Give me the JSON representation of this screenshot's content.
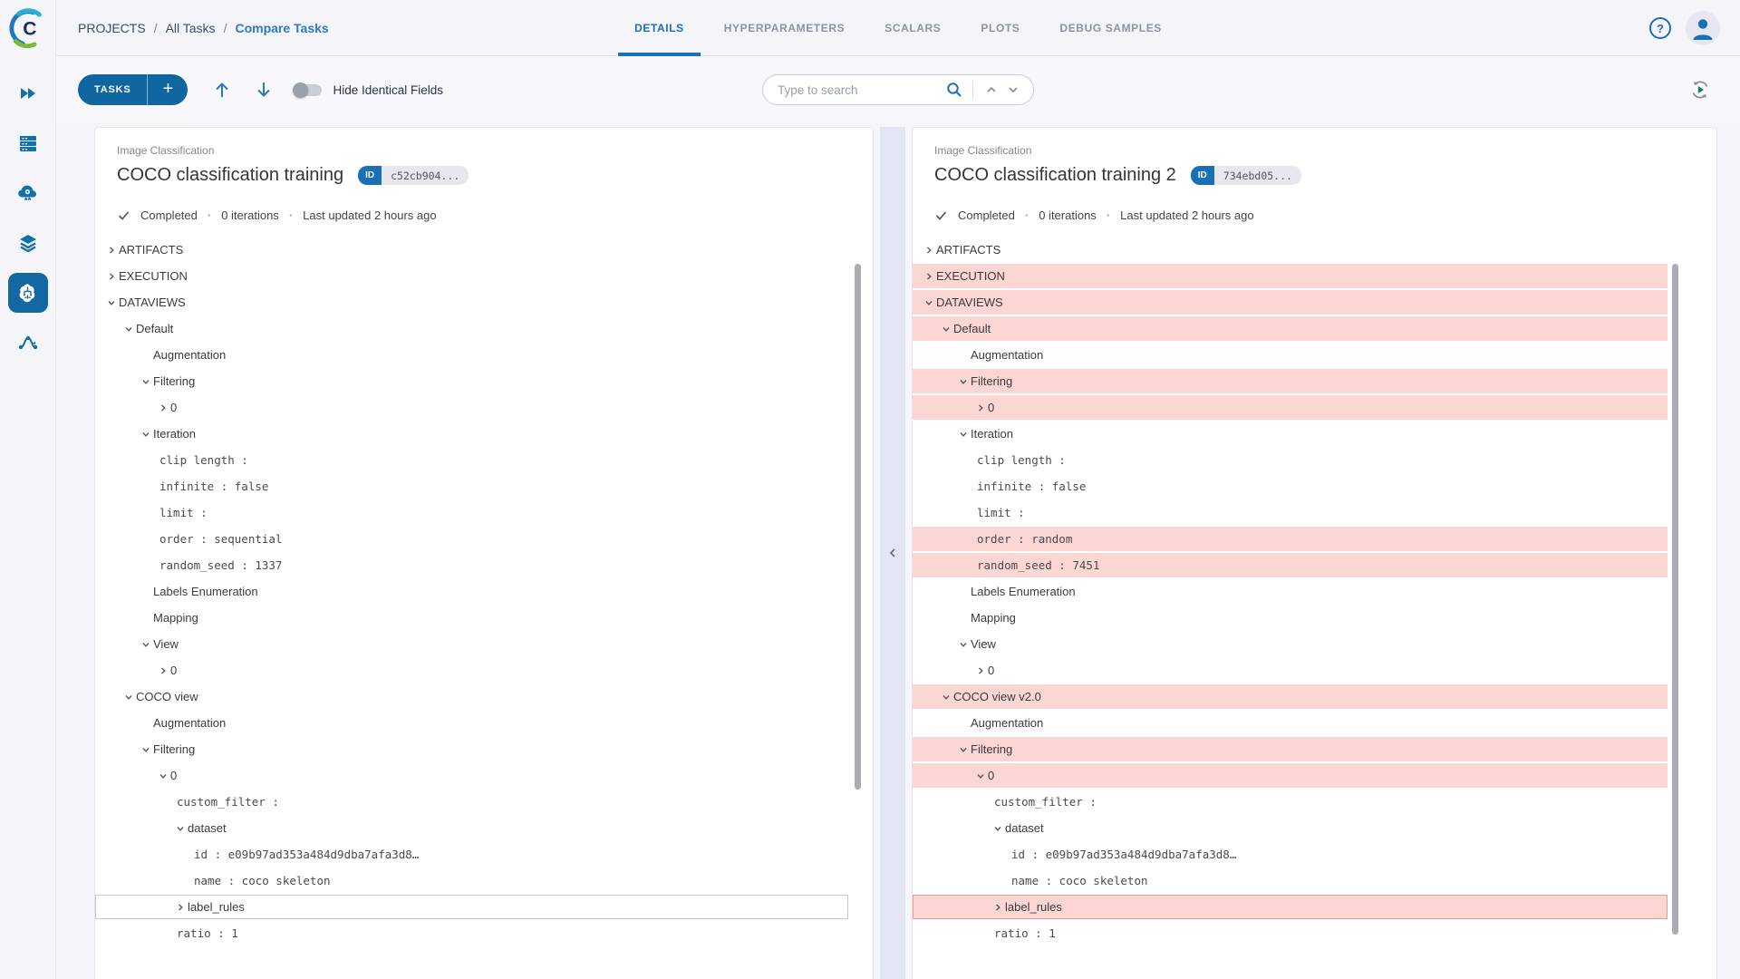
{
  "breadcrumb": {
    "projects": "PROJECTS",
    "all_tasks": "All Tasks",
    "current": "Compare Tasks",
    "separator": "/"
  },
  "tabs": [
    {
      "label": "DETAILS",
      "active": true
    },
    {
      "label": "HYPERPARAMETERS",
      "active": false
    },
    {
      "label": "SCALARS",
      "active": false
    },
    {
      "label": "PLOTS",
      "active": false
    },
    {
      "label": "DEBUG SAMPLES",
      "active": false
    }
  ],
  "top_right": {
    "help_label": "?"
  },
  "toolbar": {
    "tasks_label": "TASKS",
    "add_label": "+",
    "hide_identical_label": "Hide Identical Fields",
    "search_placeholder": "Type to search"
  },
  "collapse_button": "‹",
  "colors": {
    "accent_blue": "#1b6fb5",
    "diff_highlight": "#fbd6d2",
    "diff_selected_border": "#ea9c8f",
    "sidebar_active": "#1168a2",
    "refresh_play": "#0d7c67"
  },
  "icon_names": [
    "clearml-logo",
    "play-arrows-icon",
    "servers-icon",
    "cloud-gear-icon",
    "layers-icon",
    "brain-icon",
    "pipeline-icon",
    "help-icon",
    "user-avatar",
    "search-icon",
    "chevron-up-icon",
    "chevron-down-icon",
    "auto-refresh-icon",
    "check-icon"
  ],
  "panels": [
    {
      "project": "Image Classification",
      "title": "COCO classification training",
      "id_label": "ID",
      "id_value": "c52cb904...",
      "status": {
        "state": "Completed",
        "iterations": "0 iterations",
        "updated": "Last updated 2 hours ago",
        "dot": "·"
      },
      "rows": [
        {
          "type": "section",
          "label": "ARTIFACTS",
          "lvl": 0,
          "ch": "r"
        },
        {
          "type": "section",
          "label": "EXECUTION",
          "lvl": 0,
          "ch": "r"
        },
        {
          "type": "section",
          "label": "DATAVIEWS",
          "lvl": 0,
          "ch": "d"
        },
        {
          "type": "node",
          "label": "Default",
          "lvl": 1,
          "ch": "d"
        },
        {
          "type": "node",
          "label": "Augmentation",
          "lvl": 2,
          "ch": ""
        },
        {
          "type": "node",
          "label": "Filtering",
          "lvl": 2,
          "ch": "d"
        },
        {
          "type": "node",
          "label": "0",
          "lvl": 3,
          "ch": "r"
        },
        {
          "type": "node",
          "label": "Iteration",
          "lvl": 2,
          "ch": "d"
        },
        {
          "type": "kv",
          "k": "clip length",
          "v": "",
          "lvl": 3
        },
        {
          "type": "kv",
          "k": "infinite",
          "v": "false",
          "lvl": 3
        },
        {
          "type": "kv",
          "k": "limit",
          "v": "",
          "lvl": 3
        },
        {
          "type": "kv",
          "k": "order",
          "v": "sequential",
          "lvl": 3
        },
        {
          "type": "kv",
          "k": "random_seed",
          "v": "1337",
          "lvl": 3
        },
        {
          "type": "node",
          "label": "Labels Enumeration",
          "lvl": 2,
          "ch": ""
        },
        {
          "type": "node",
          "label": "Mapping",
          "lvl": 2,
          "ch": ""
        },
        {
          "type": "node",
          "label": "View",
          "lvl": 2,
          "ch": "d"
        },
        {
          "type": "node",
          "label": "0",
          "lvl": 3,
          "ch": "r"
        },
        {
          "type": "node",
          "label": "COCO view",
          "lvl": 1,
          "ch": "d"
        },
        {
          "type": "node",
          "label": "Augmentation",
          "lvl": 2,
          "ch": ""
        },
        {
          "type": "node",
          "label": "Filtering",
          "lvl": 2,
          "ch": "d"
        },
        {
          "type": "node",
          "label": "0",
          "lvl": 3,
          "ch": "d"
        },
        {
          "type": "kv",
          "k": "custom_filter",
          "v": "",
          "lvl": 4
        },
        {
          "type": "node",
          "label": "dataset",
          "lvl": 4,
          "ch": "d"
        },
        {
          "type": "kv",
          "k": "id",
          "v": "e09b97ad353a484d9dba7afa3d8…",
          "lvl": 5
        },
        {
          "type": "kv",
          "k": "name",
          "v": "coco skeleton",
          "lvl": 5
        },
        {
          "type": "node",
          "label": "label_rules",
          "lvl": 4,
          "ch": "r",
          "selected": true
        },
        {
          "type": "kv",
          "k": "ratio",
          "v": "1",
          "lvl": 4
        }
      ]
    },
    {
      "project": "Image Classification",
      "title": "COCO classification training 2",
      "id_label": "ID",
      "id_value": "734ebd05...",
      "status": {
        "state": "Completed",
        "iterations": "0 iterations",
        "updated": "Last updated 2 hours ago",
        "dot": "·"
      },
      "rows": [
        {
          "type": "section",
          "label": "ARTIFACTS",
          "lvl": 0,
          "ch": "r"
        },
        {
          "type": "section",
          "label": "EXECUTION",
          "lvl": 0,
          "ch": "r",
          "hl": true
        },
        {
          "type": "section",
          "label": "DATAVIEWS",
          "lvl": 0,
          "ch": "d",
          "hl": true
        },
        {
          "type": "node",
          "label": "Default",
          "lvl": 1,
          "ch": "d",
          "hl": true
        },
        {
          "type": "node",
          "label": "Augmentation",
          "lvl": 2,
          "ch": ""
        },
        {
          "type": "node",
          "label": "Filtering",
          "lvl": 2,
          "ch": "d",
          "hl": true
        },
        {
          "type": "node",
          "label": "0",
          "lvl": 3,
          "ch": "r",
          "hl": true
        },
        {
          "type": "node",
          "label": "Iteration",
          "lvl": 2,
          "ch": "d"
        },
        {
          "type": "kv",
          "k": "clip length",
          "v": "",
          "lvl": 3
        },
        {
          "type": "kv",
          "k": "infinite",
          "v": "false",
          "lvl": 3
        },
        {
          "type": "kv",
          "k": "limit",
          "v": "",
          "lvl": 3
        },
        {
          "type": "kv",
          "k": "order",
          "v": "random",
          "lvl": 3,
          "hl": true
        },
        {
          "type": "kv",
          "k": "random_seed",
          "v": "7451",
          "lvl": 3,
          "hl": true
        },
        {
          "type": "node",
          "label": "Labels Enumeration",
          "lvl": 2,
          "ch": ""
        },
        {
          "type": "node",
          "label": "Mapping",
          "lvl": 2,
          "ch": ""
        },
        {
          "type": "node",
          "label": "View",
          "lvl": 2,
          "ch": "d"
        },
        {
          "type": "node",
          "label": "0",
          "lvl": 3,
          "ch": "r"
        },
        {
          "type": "node",
          "label": "COCO view v2.0",
          "lvl": 1,
          "ch": "d",
          "hl": true
        },
        {
          "type": "node",
          "label": "Augmentation",
          "lvl": 2,
          "ch": ""
        },
        {
          "type": "node",
          "label": "Filtering",
          "lvl": 2,
          "ch": "d",
          "hl": true
        },
        {
          "type": "node",
          "label": "0",
          "lvl": 3,
          "ch": "d",
          "hl": true
        },
        {
          "type": "kv",
          "k": "custom_filter",
          "v": "",
          "lvl": 4
        },
        {
          "type": "node",
          "label": "dataset",
          "lvl": 4,
          "ch": "d"
        },
        {
          "type": "kv",
          "k": "id",
          "v": "e09b97ad353a484d9dba7afa3d8…",
          "lvl": 5
        },
        {
          "type": "kv",
          "k": "name",
          "v": "coco skeleton",
          "lvl": 5
        },
        {
          "type": "node",
          "label": "label_rules",
          "lvl": 4,
          "ch": "r",
          "hl": true,
          "selected": true
        },
        {
          "type": "kv",
          "k": "ratio",
          "v": "1",
          "lvl": 4
        }
      ]
    }
  ]
}
